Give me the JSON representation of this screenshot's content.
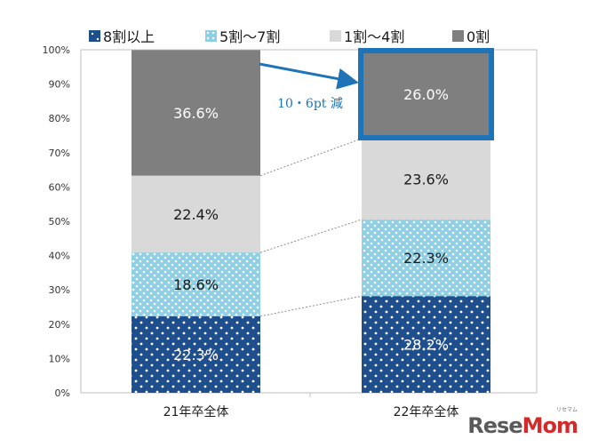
{
  "chart_data": {
    "type": "bar",
    "stacked": true,
    "categories": [
      "21年卒全体",
      "22年卒全体"
    ],
    "series": [
      {
        "name": "8割以上",
        "values": [
          22.3,
          28.2
        ],
        "color": "#1f4e8c",
        "pattern": "white-dots"
      },
      {
        "name": "5割〜7割",
        "values": [
          18.6,
          22.3
        ],
        "color": "#8fcfe6",
        "pattern": "white-dots"
      },
      {
        "name": "1割〜4割",
        "values": [
          22.4,
          23.6
        ],
        "color": "#d9d9d9",
        "pattern": "solid"
      },
      {
        "name": "0割",
        "values": [
          36.6,
          26.0
        ],
        "color": "#7f7f7f",
        "pattern": "solid"
      }
    ],
    "data_labels": [
      [
        "22.3%",
        "18.6%",
        "22.4%",
        "36.6%"
      ],
      [
        "28.2%",
        "22.3%",
        "23.6%",
        "26.0%"
      ]
    ],
    "ylim": [
      0,
      100
    ],
    "yticks": [
      "0%",
      "10%",
      "20%",
      "30%",
      "40%",
      "50%",
      "60%",
      "70%",
      "80%",
      "90%",
      "100%"
    ],
    "grid": false,
    "legend": "top",
    "annotation": {
      "text": "10・6pt 減",
      "color": "#1f73b7"
    },
    "highlight": {
      "category": 1,
      "series": 3,
      "color": "#1f73b7"
    }
  },
  "legend_labels": [
    "8割以上",
    "5割〜7割",
    "1割〜4割",
    "0割"
  ],
  "watermark": {
    "left": "Rese",
    "right": "Mom",
    "small": "リセマム"
  }
}
